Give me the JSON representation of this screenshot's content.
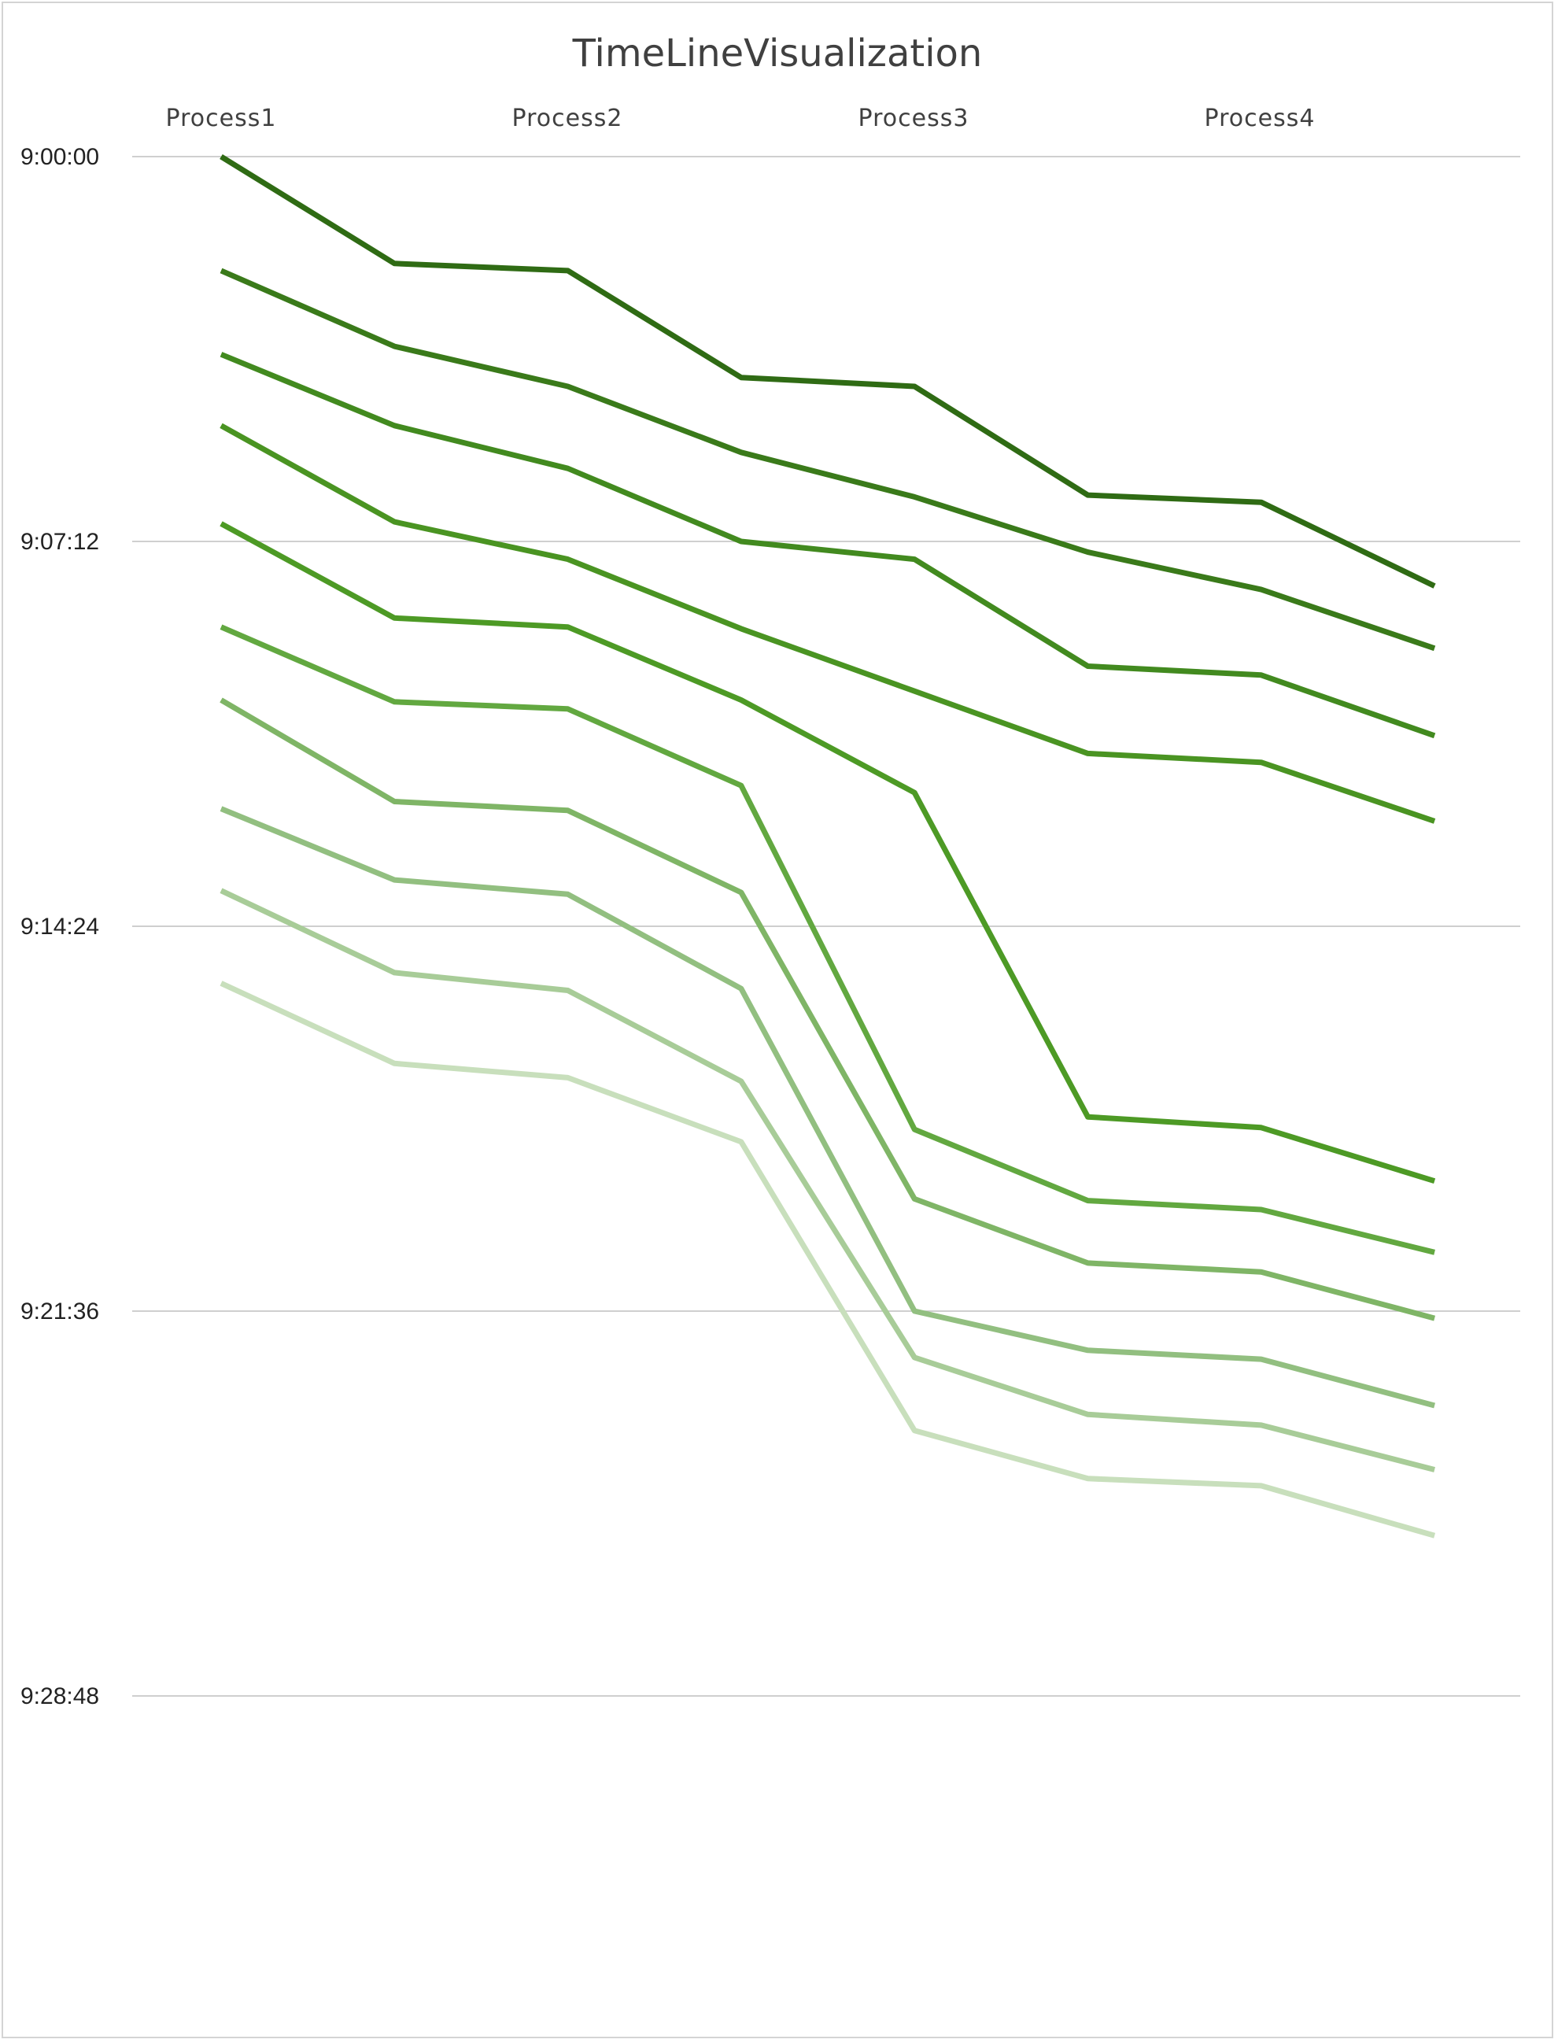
{
  "chart_data": {
    "type": "line",
    "title": "TimeLineVisualization",
    "columns": [
      "Process1",
      "Process2",
      "Process3",
      "Process4"
    ],
    "y_ticks": [
      "9:00:00",
      "9:07:12",
      "9:14:24",
      "9:21:36",
      "9:28:48"
    ],
    "y_tick_seconds": [
      0,
      432,
      864,
      1296,
      1728
    ],
    "ylim": [
      0,
      1728
    ],
    "y_reversed": true,
    "grid": true,
    "legend": "none",
    "x_positions": [
      1,
      2,
      3,
      4,
      5,
      6,
      7,
      8
    ],
    "series": [
      {
        "color": "#2f6b14",
        "values": [
          "9:00:00",
          "9:02:00",
          "9:02:08",
          "9:04:08",
          "9:04:18",
          "9:06:20",
          "9:06:28",
          "9:08:02"
        ]
      },
      {
        "color": "#3a7a1a",
        "values": [
          "9:02:08",
          "9:03:33",
          "9:04:18",
          "9:05:32",
          "9:06:22",
          "9:07:24",
          "9:08:06",
          "9:09:12"
        ]
      },
      {
        "color": "#428a1f",
        "values": [
          "9:03:42",
          "9:05:02",
          "9:05:50",
          "9:07:12",
          "9:07:32",
          "9:09:32",
          "9:09:42",
          "9:10:50"
        ]
      },
      {
        "color": "#4a9422",
        "values": [
          "9:05:02",
          "9:06:50",
          "9:07:32",
          "9:08:50",
          "9:10:00",
          "9:11:10",
          "9:11:20",
          "9:12:26"
        ]
      },
      {
        "color": "#4d9a25",
        "values": [
          "9:06:52",
          "9:08:38",
          "9:08:48",
          "9:10:10",
          "9:11:54",
          "9:17:58",
          "9:18:10",
          "9:19:10"
        ]
      },
      {
        "color": "#62a840",
        "values": [
          "9:08:48",
          "9:10:12",
          "9:10:20",
          "9:11:46",
          "9:18:12",
          "9:19:32",
          "9:19:42",
          "9:20:30"
        ]
      },
      {
        "color": "#7fb566",
        "values": [
          "9:10:10",
          "9:12:04",
          "9:12:14",
          "9:13:46",
          "9:19:30",
          "9:20:42",
          "9:20:52",
          "9:21:44"
        ]
      },
      {
        "color": "#92bf80",
        "values": [
          "9:12:12",
          "9:13:32",
          "9:13:48",
          "9:15:34",
          "9:21:36",
          "9:22:20",
          "9:22:30",
          "9:23:22"
        ]
      },
      {
        "color": "#a8cc98",
        "values": [
          "9:13:44",
          "9:15:16",
          "9:15:36",
          "9:17:18",
          "9:22:28",
          "9:23:32",
          "9:23:44",
          "9:24:34"
        ]
      },
      {
        "color": "#c8dfbc",
        "values": [
          "9:15:28",
          "9:16:58",
          "9:17:14",
          "9:18:26",
          "9:23:50",
          "9:24:44",
          "9:24:52",
          "9:25:48"
        ]
      }
    ]
  }
}
